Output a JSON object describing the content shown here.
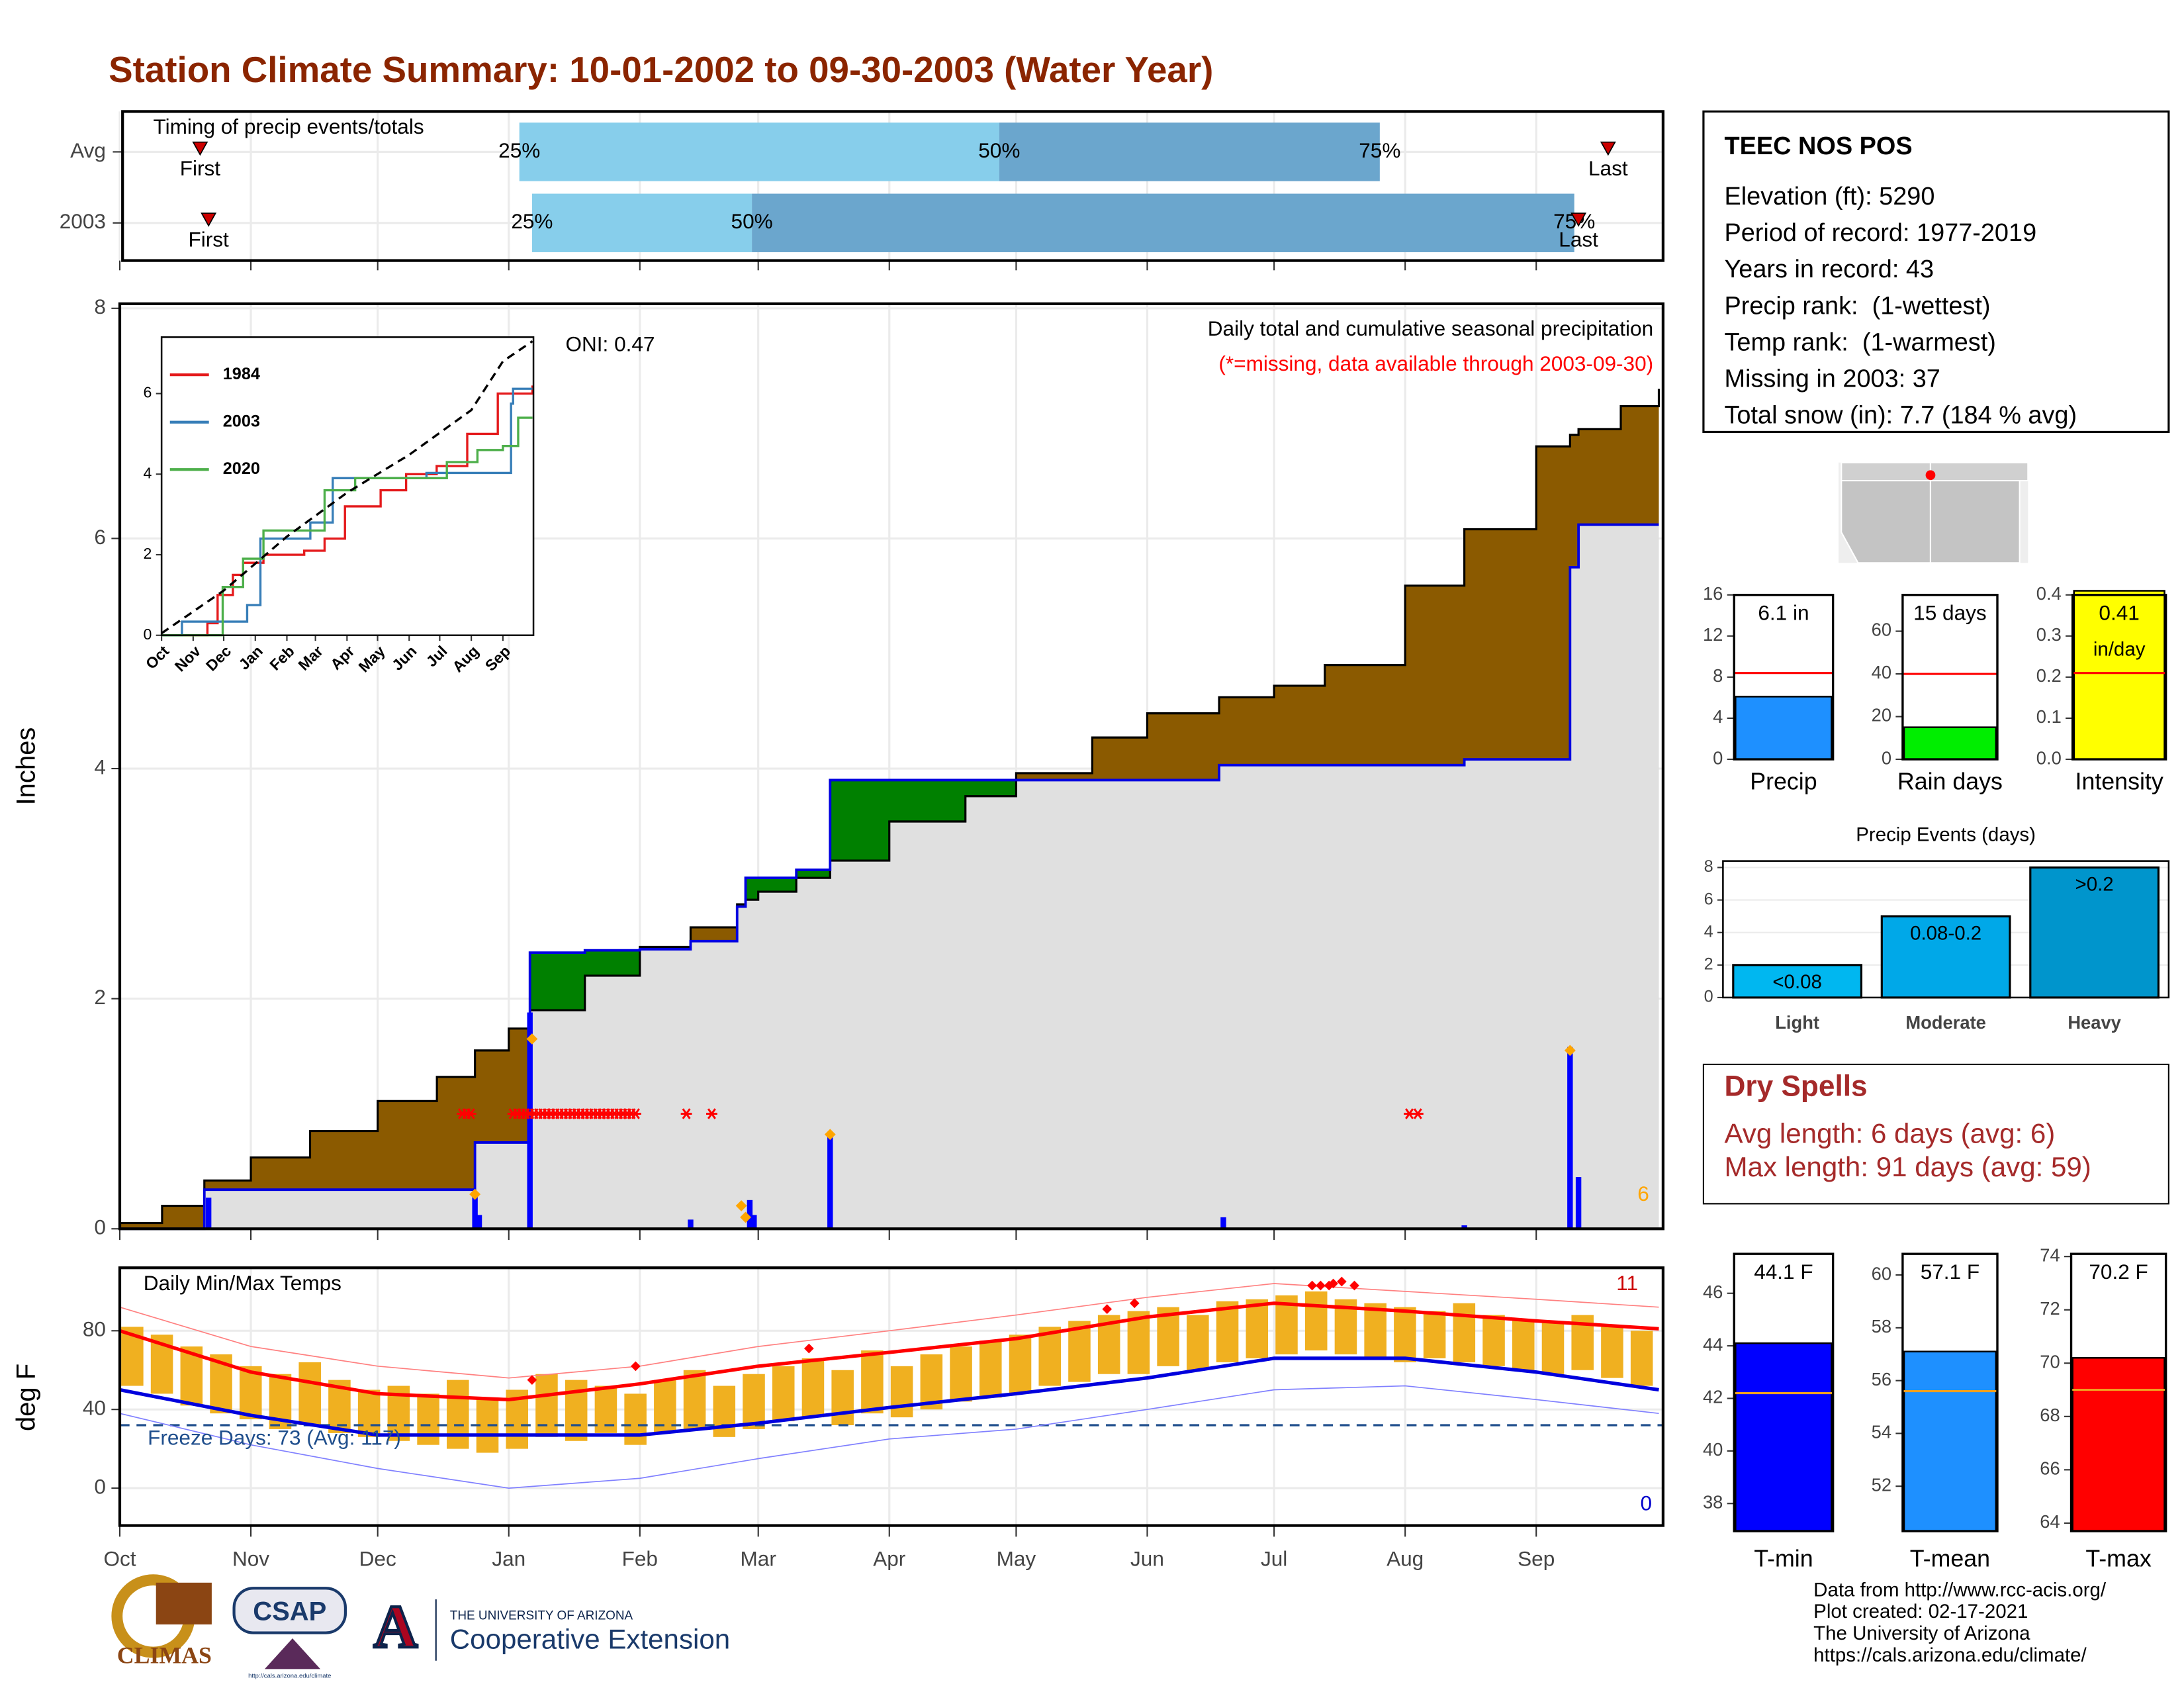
{
  "title": "Station Climate Summary: 10-01-2002 to 09-30-2003 (Water Year)",
  "info_box": {
    "station": "TEEC NOS POS",
    "lines": [
      "Elevation (ft): 5290",
      "Period of record: 1977-2019",
      "Years in record: 43",
      "Precip rank:  (1-wettest)",
      "Temp rank:  (1-warmest)",
      "Missing in 2003: 37",
      "Total snow (in): 7.7 (184 % avg)"
    ]
  },
  "dry_spells": {
    "title": "Dry Spells",
    "lines": [
      "Avg length: 6 days (avg: 6)",
      "Max length: 91 days (avg: 59)"
    ]
  },
  "credits": [
    "Data from http://www.rcc-acis.org/",
    "Plot created: 02-17-2021",
    "The University of Arizona",
    "https://cals.arizona.edu/climate/"
  ],
  "logos": {
    "climas": "CLIMAS",
    "csap": "CSAP",
    "csap_url": "http://cals.arizona.edu/climate",
    "university": "THE UNIVERSITY OF ARIZONA",
    "extension": "Cooperative Extension"
  },
  "chart_data": [
    {
      "type": "timing",
      "title": "Timing of precip events/totals",
      "xlim": [
        0,
        365
      ],
      "point_labels": [
        "First",
        "25%",
        "50%",
        "75%",
        "Last"
      ],
      "rows": [
        {
          "name": "Avg",
          "values": [
            19,
            94.5,
            208,
            298,
            352
          ]
        },
        {
          "name": "2003",
          "values": [
            21,
            97.5,
            149.5,
            344,
            345
          ]
        }
      ],
      "colors": [
        "#87ceeb",
        "#6ba6cd"
      ],
      "marker_color": "#cc0000"
    },
    {
      "type": "cumulative-precip",
      "title": "Daily total and cumulative seasonal precipitation",
      "subtitle": "(*=missing, data available through 2003-09-30)",
      "annotation": "ONI: 0.47",
      "ylabel": "Inches",
      "snow_days": 6,
      "xlim": [
        0,
        365
      ],
      "ylim": [
        0,
        8.04
      ],
      "yticks": [
        0,
        2,
        4,
        6,
        8
      ],
      "grid": true,
      "x": [
        0,
        10,
        20,
        31,
        45,
        61,
        75,
        84,
        92,
        97,
        110,
        123,
        135,
        146,
        148,
        151,
        160,
        168,
        182,
        200,
        212,
        230,
        243,
        260,
        273,
        285,
        304,
        318,
        335,
        343,
        345,
        355,
        364
      ],
      "series": [
        {
          "name": "2003",
          "color": "#0000e0",
          "values": [
            0,
            0,
            0.34,
            0.34,
            0.34,
            0.34,
            0.34,
            0.75,
            0.75,
            2.4,
            2.42,
            2.43,
            2.5,
            2.8,
            3.05,
            3.05,
            3.12,
            3.9,
            3.9,
            3.9,
            3.9,
            3.9,
            3.9,
            4.03,
            4.03,
            4.03,
            4.03,
            4.08,
            4.08,
            5.75,
            6.12,
            6.12,
            6.12
          ]
        },
        {
          "color": "#000000",
          "values": [
            0.05,
            0.2,
            0.42,
            0.62,
            0.85,
            1.11,
            1.32,
            1.55,
            1.74,
            1.9,
            2.2,
            2.45,
            2.62,
            2.82,
            2.86,
            2.93,
            3.05,
            3.2,
            3.54,
            3.76,
            3.96,
            4.27,
            4.48,
            4.62,
            4.72,
            4.9,
            5.59,
            6.08,
            6.8,
            6.9,
            6.95,
            7.15,
            7.3
          ]
        }
      ],
      "deficit_color": "#8b5a00",
      "surplus_color": "#008000",
      "base_color": "#e0e0e0",
      "daily": {
        "color": "#0000ff",
        "x": [
          21,
          84,
          85,
          97,
          135,
          149,
          150,
          168,
          261,
          318,
          343,
          345
        ],
        "values": [
          0.27,
          0.28,
          0.12,
          1.88,
          0.08,
          0.25,
          0.12,
          0.82,
          0.1,
          0.03,
          1.58,
          0.45
        ]
      },
      "snow": {
        "color": "#ffa500",
        "x": [
          84,
          97.5,
          147,
          148,
          168,
          343
        ],
        "values": [
          0.3,
          1.65,
          0.2,
          0.1,
          0.82,
          1.55
        ]
      },
      "missing": {
        "color": "#ff0000",
        "level": 1,
        "x": [
          81,
          82,
          83,
          93,
          94,
          95,
          96,
          97,
          98,
          99,
          100,
          101,
          102,
          103,
          104,
          105,
          106,
          107,
          108,
          109,
          110,
          111,
          112,
          113,
          114,
          115,
          116,
          117,
          118,
          119,
          120,
          121,
          122,
          134,
          140,
          305,
          307
        ]
      }
    },
    {
      "type": "line",
      "legend": "upper-left",
      "xlim": [
        0,
        365
      ],
      "ylim": [
        0,
        7.4
      ],
      "yticks": [
        0,
        2,
        4,
        6
      ],
      "xticks": [
        {
          "value": 0,
          "label": "Oct"
        },
        {
          "value": 31,
          "label": "Nov"
        },
        {
          "value": 61,
          "label": "Dec"
        },
        {
          "value": 92,
          "label": "Jan"
        },
        {
          "value": 123,
          "label": "Feb"
        },
        {
          "value": 151,
          "label": "Mar"
        },
        {
          "value": 182,
          "label": "Apr"
        },
        {
          "value": 212,
          "label": "May"
        },
        {
          "value": 243,
          "label": "Jun"
        },
        {
          "value": 273,
          "label": "Jul"
        },
        {
          "value": 304,
          "label": "Aug"
        },
        {
          "value": 335,
          "label": "Sep"
        }
      ],
      "series": [
        {
          "name": "1984",
          "color": "#e41a1c",
          "x": [
            0,
            45,
            55,
            70,
            80,
            100,
            140,
            160,
            180,
            215,
            240,
            270,
            300,
            330,
            364
          ],
          "values": [
            0,
            0.3,
            1.0,
            1.5,
            1.8,
            2.0,
            2.1,
            2.4,
            3.2,
            3.6,
            4.0,
            4.2,
            5.0,
            6.0,
            6.2
          ]
        },
        {
          "name": "2003",
          "color": "#377eb8",
          "x": [
            0,
            20,
            84,
            97,
            146,
            168,
            260,
            343,
            345,
            364
          ],
          "values": [
            0,
            0.34,
            0.75,
            2.4,
            2.8,
            3.9,
            4.03,
            5.75,
            6.12,
            6.12
          ]
        },
        {
          "name": "2020",
          "color": "#4daf4a",
          "x": [
            0,
            60,
            80,
            100,
            130,
            160,
            190,
            230,
            280,
            310,
            335,
            350,
            364
          ],
          "values": [
            0,
            1.2,
            1.9,
            2.6,
            2.6,
            3.6,
            3.9,
            3.9,
            4.3,
            4.6,
            4.7,
            5.4,
            5.4
          ]
        }
      ],
      "average": {
        "color": "#000000",
        "x": [
          0,
          61,
          123,
          182,
          243,
          304,
          335,
          364
        ],
        "values": [
          0.05,
          1.11,
          2.45,
          3.54,
          4.48,
          5.59,
          6.8,
          7.3
        ]
      }
    },
    {
      "type": "temps",
      "title": "Daily Min/Max Temps",
      "ylabel": "deg F",
      "annotation": "Freeze Days: 73 (Avg: 117)",
      "record_highs": 11,
      "record_lows": 0,
      "freeze": 32,
      "xlim": [
        0,
        365
      ],
      "ylim": [
        -19,
        112
      ],
      "yticks": [
        0,
        40,
        80
      ],
      "grid": true,
      "xticks": [
        {
          "value": 0,
          "label": "Oct"
        },
        {
          "value": 31,
          "label": "Nov"
        },
        {
          "value": 61,
          "label": "Dec"
        },
        {
          "value": 92,
          "label": "Jan"
        },
        {
          "value": 123,
          "label": "Feb"
        },
        {
          "value": 151,
          "label": "Mar"
        },
        {
          "value": 182,
          "label": "Apr"
        },
        {
          "value": 212,
          "label": "May"
        },
        {
          "value": 243,
          "label": "Jun"
        },
        {
          "value": 273,
          "label": "Jul"
        },
        {
          "value": 304,
          "label": "Aug"
        },
        {
          "value": 335,
          "label": "Sep"
        }
      ],
      "bars": {
        "color": "#f0b020",
        "x": [
          0,
          7,
          14,
          21,
          28,
          35,
          42,
          49,
          56,
          63,
          70,
          77,
          84,
          91,
          98,
          105,
          112,
          119,
          126,
          133,
          140,
          147,
          154,
          161,
          168,
          175,
          182,
          189,
          196,
          203,
          210,
          217,
          224,
          231,
          238,
          245,
          252,
          259,
          266,
          273,
          280,
          287,
          294,
          301,
          308,
          315,
          322,
          329,
          336,
          343,
          350,
          357
        ],
        "max": [
          82,
          78,
          72,
          68,
          62,
          58,
          64,
          55,
          50,
          52,
          48,
          55,
          45,
          50,
          58,
          55,
          52,
          48,
          55,
          60,
          52,
          58,
          62,
          66,
          60,
          70,
          62,
          68,
          72,
          75,
          78,
          82,
          85,
          88,
          90,
          92,
          88,
          95,
          96,
          98,
          100,
          96,
          94,
          92,
          90,
          94,
          88,
          86,
          85,
          88,
          82,
          80
        ],
        "min": [
          52,
          48,
          42,
          38,
          35,
          30,
          32,
          28,
          26,
          24,
          22,
          20,
          18,
          20,
          26,
          24,
          28,
          22,
          28,
          30,
          26,
          30,
          34,
          36,
          32,
          38,
          36,
          40,
          44,
          46,
          48,
          52,
          54,
          58,
          58,
          62,
          60,
          64,
          66,
          68,
          70,
          68,
          66,
          64,
          66,
          64,
          62,
          60,
          58,
          60,
          56,
          52
        ]
      },
      "series": [
        {
          "color": "#ff0000",
          "width": 2.5,
          "x": [
            0,
            31,
            61,
            92,
            123,
            151,
            182,
            212,
            243,
            273,
            304,
            335,
            364
          ],
          "values": [
            80,
            59,
            48,
            45,
            53,
            62,
            69,
            76,
            87,
            94,
            90,
            85,
            81
          ]
        },
        {
          "color": "#0000dd",
          "width": 2.5,
          "x": [
            0,
            31,
            61,
            92,
            123,
            151,
            182,
            212,
            243,
            273,
            304,
            335,
            364
          ],
          "values": [
            50,
            37,
            27,
            27,
            27,
            33,
            41,
            48,
            56,
            66,
            66,
            59,
            50
          ]
        },
        {
          "color": "#ff8080",
          "width": 0.8,
          "x": [
            0,
            31,
            61,
            92,
            123,
            151,
            182,
            212,
            243,
            273,
            304,
            335,
            364
          ],
          "values": [
            92,
            72,
            62,
            56,
            62,
            72,
            80,
            88,
            97,
            104,
            100,
            96,
            92
          ]
        },
        {
          "color": "#8080ff",
          "width": 0.8,
          "x": [
            0,
            31,
            61,
            92,
            123,
            151,
            182,
            212,
            243,
            273,
            304,
            335,
            364
          ],
          "values": [
            38,
            22,
            10,
            0,
            5,
            15,
            25,
            30,
            40,
            50,
            52,
            45,
            38
          ]
        }
      ],
      "records": {
        "color": "#ff0000",
        "x": [
          97.5,
          122,
          163,
          233.5,
          240,
          282,
          284,
          286,
          287,
          289,
          292
        ],
        "values": [
          55,
          62,
          71,
          91,
          94,
          103,
          103,
          103,
          104,
          105,
          103
        ]
      }
    },
    {
      "type": "bar",
      "categories": [
        "Precip"
      ],
      "values": [
        6.1
      ],
      "value_labels": [
        "6.1 in"
      ],
      "average": 8.4,
      "ylim": [
        0,
        16
      ],
      "yticks": [
        0,
        4,
        8,
        12,
        16
      ],
      "color": "#1e90ff",
      "average_color": "#ff0000"
    },
    {
      "type": "bar",
      "categories": [
        "Rain days"
      ],
      "values": [
        15
      ],
      "value_labels": [
        "15 days"
      ],
      "average": 40,
      "ylim": [
        0,
        77
      ],
      "yticks": [
        0,
        20,
        40,
        60
      ],
      "color": "#00ee00",
      "average_color": "#ff0000"
    },
    {
      "type": "bar",
      "categories": [
        "Intensity"
      ],
      "values": [
        0.41
      ],
      "value_labels": [
        "0.41"
      ],
      "unit": "in/day",
      "average": 0.21,
      "ylim": [
        0,
        0.4
      ],
      "yticks": [
        {
          "value": 0,
          "label": "0.0"
        },
        0.1,
        0.2,
        0.3,
        0.4
      ],
      "color": "#ffff00",
      "average_color": "#ff0000"
    },
    {
      "type": "bar",
      "title": "Precip Events (days)",
      "categories": [
        "Light",
        "Moderate",
        "Heavy"
      ],
      "values": [
        2,
        5,
        8
      ],
      "bin_labels": [
        "<0.08",
        "0.08-0.2",
        ">0.2"
      ],
      "ylim": [
        0,
        8.4
      ],
      "yticks": [
        0,
        2,
        4,
        6,
        8
      ],
      "colors": [
        "#00b7f0",
        "#00a8e8",
        "#0095cc"
      ],
      "grid": true
    },
    {
      "type": "bar",
      "categories": [
        "T-min"
      ],
      "values": [
        44.1
      ],
      "value_labels": [
        "44.1 F"
      ],
      "average": 42.2,
      "ylim": [
        36.95,
        47.5
      ],
      "yticks": [
        38,
        40,
        42,
        44,
        46
      ],
      "color": "#0000ff",
      "average_color": "#f0a020"
    },
    {
      "type": "bar",
      "categories": [
        "T-mean"
      ],
      "values": [
        57.1
      ],
      "value_labels": [
        "57.1 F"
      ],
      "average": 55.6,
      "ylim": [
        50.3,
        60.8
      ],
      "yticks": [
        52,
        54,
        56,
        58,
        60
      ],
      "color": "#1e90ff",
      "average_color": "#f0a020"
    },
    {
      "type": "bar",
      "categories": [
        "T-max"
      ],
      "values": [
        70.2
      ],
      "value_labels": [
        "70.2 F"
      ],
      "average": 69.0,
      "ylim": [
        63.7,
        74.1
      ],
      "yticks": [
        64,
        66,
        68,
        70,
        72,
        74
      ],
      "color": "#ff0000",
      "average_color": "#f0a020"
    }
  ]
}
